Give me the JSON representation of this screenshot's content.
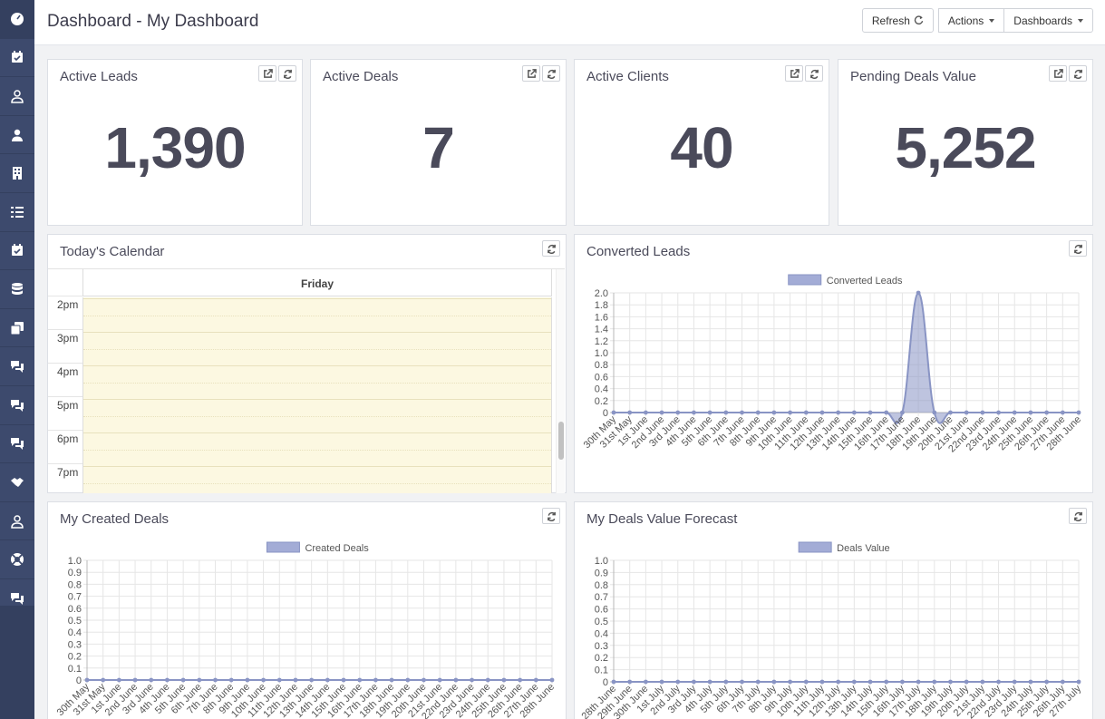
{
  "header": {
    "title": "Dashboard - My Dashboard",
    "refresh_label": "Refresh",
    "actions_label": "Actions",
    "dashboards_label": "Dashboards"
  },
  "sidebar": {
    "items": [
      {
        "icon": "dashboard-icon"
      },
      {
        "icon": "calendar-check-icon"
      },
      {
        "icon": "user-outline-icon"
      },
      {
        "icon": "user-icon"
      },
      {
        "icon": "building-icon"
      },
      {
        "icon": "list-check-icon"
      },
      {
        "icon": "calendar-check-icon"
      },
      {
        "icon": "database-icon"
      },
      {
        "icon": "copy-icon"
      },
      {
        "icon": "comments-icon"
      },
      {
        "icon": "comments-icon"
      },
      {
        "icon": "comments-icon"
      },
      {
        "icon": "handshake-icon"
      },
      {
        "icon": "user-outline-icon"
      },
      {
        "icon": "life-ring-icon"
      },
      {
        "icon": "comments-icon"
      }
    ]
  },
  "stats": [
    {
      "title": "Active Leads",
      "value": "1,390"
    },
    {
      "title": "Active Deals",
      "value": "7"
    },
    {
      "title": "Active Clients",
      "value": "40"
    },
    {
      "title": "Pending Deals Value",
      "value": "5,252"
    }
  ],
  "calendar": {
    "title": "Today's Calendar",
    "day": "Friday",
    "times": [
      "2pm",
      "3pm",
      "4pm",
      "5pm",
      "6pm",
      "7pm"
    ]
  },
  "chart_data": [
    {
      "type": "area",
      "title": "Converted Leads",
      "legend": "Converted Leads",
      "legend_position": "top",
      "color": "#8994c4",
      "ylim": [
        0,
        2.0
      ],
      "yticks": [
        "2.0",
        "1.8",
        "1.6",
        "1.4",
        "1.2",
        "1.0",
        "0.8",
        "0.6",
        "0.4",
        "0.2",
        "0"
      ],
      "x": [
        "30th May",
        "31st May",
        "1st June",
        "2nd June",
        "3rd June",
        "4th June",
        "5th June",
        "6th June",
        "7th June",
        "8th June",
        "9th June",
        "10th June",
        "11th June",
        "12th June",
        "13th June",
        "14th June",
        "15th June",
        "16th June",
        "17th June",
        "18th June",
        "19th June",
        "20th June",
        "21st June",
        "22nd June",
        "23rd June",
        "24th June",
        "25th June",
        "26th June",
        "27th June",
        "28th June"
      ],
      "values": [
        0,
        0,
        0,
        0,
        0,
        0,
        0,
        0,
        0,
        0,
        0,
        0,
        0,
        0,
        0,
        0,
        0,
        0,
        0,
        2,
        0,
        0,
        0,
        0,
        0,
        0,
        0,
        0,
        0,
        0
      ]
    },
    {
      "type": "area",
      "title": "My Created Deals",
      "legend": "Created Deals",
      "legend_position": "top",
      "color": "#8994c4",
      "ylim": [
        0,
        1.0
      ],
      "yticks": [
        "1.0",
        "0.9",
        "0.8",
        "0.7",
        "0.6",
        "0.5",
        "0.4",
        "0.3",
        "0.2",
        "0.1",
        "0"
      ],
      "x": [
        "30th May",
        "31st May",
        "1st June",
        "2nd June",
        "3rd June",
        "4th June",
        "5th June",
        "6th June",
        "7th June",
        "8th June",
        "9th June",
        "10th June",
        "11th June",
        "12th June",
        "13th June",
        "14th June",
        "15th June",
        "16th June",
        "17th June",
        "18th June",
        "19th June",
        "20th June",
        "21st June",
        "22nd June",
        "23rd June",
        "24th June",
        "25th June",
        "26th June",
        "27th June",
        "28th June"
      ],
      "values": [
        0,
        0,
        0,
        0,
        0,
        0,
        0,
        0,
        0,
        0,
        0,
        0,
        0,
        0,
        0,
        0,
        0,
        0,
        0,
        0,
        0,
        0,
        0,
        0,
        0,
        0,
        0,
        0,
        0,
        0
      ]
    },
    {
      "type": "area",
      "title": "My Deals Value Forecast",
      "legend": "Deals Value",
      "legend_position": "top",
      "color": "#8994c4",
      "ylim": [
        0,
        1.0
      ],
      "yticks": [
        "1.0",
        "0.9",
        "0.8",
        "0.7",
        "0.6",
        "0.5",
        "0.4",
        "0.3",
        "0.2",
        "0.1",
        "0"
      ],
      "x": [
        "28th June",
        "29th June",
        "30th June",
        "1st July",
        "2nd July",
        "3rd July",
        "4th July",
        "5th July",
        "6th July",
        "7th July",
        "8th July",
        "9th July",
        "10th July",
        "11th July",
        "12th July",
        "13th July",
        "14th July",
        "15th July",
        "16th July",
        "17th July",
        "18th July",
        "19th July",
        "20th July",
        "21st July",
        "22nd July",
        "23rd July",
        "24th July",
        "25th July",
        "26th July",
        "27th July"
      ],
      "values": [
        0,
        0,
        0,
        0,
        0,
        0,
        0,
        0,
        0,
        0,
        0,
        0,
        0,
        0,
        0,
        0,
        0,
        0,
        0,
        0,
        0,
        0,
        0,
        0,
        0,
        0,
        0,
        0,
        0,
        0
      ]
    }
  ]
}
